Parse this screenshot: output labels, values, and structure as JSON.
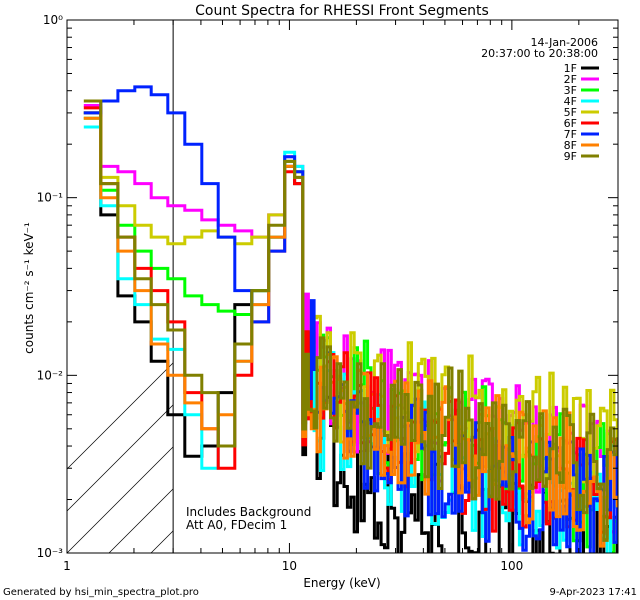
{
  "chart_data": {
    "type": "line",
    "title": "Count Spectra for RHESSI Front Segments",
    "xlabel": "Energy (keV)",
    "ylabel": "counts cm⁻² s⁻¹ keV⁻¹",
    "xscale": "log",
    "yscale": "log",
    "xlim": [
      1,
      300
    ],
    "ylim": [
      0.001,
      1
    ],
    "x_ticks": [
      {
        "value": 1,
        "label": "1"
      },
      {
        "value": 10,
        "label": "10"
      },
      {
        "value": 100,
        "label": "100"
      }
    ],
    "y_ticks": [
      {
        "value": 0.001,
        "label": "10⁻³"
      },
      {
        "value": 0.01,
        "label": "10⁻²"
      },
      {
        "value": 0.1,
        "label": "10⁻¹"
      },
      {
        "value": 1,
        "label": "10⁰"
      }
    ],
    "attenuator_hatch_xmax": 3,
    "date": "14-Jan-2006",
    "time_range": "20:37:00 to 20:38:00",
    "notes": [
      "Includes Background",
      "Att A0, FDecim 1"
    ],
    "footer_left": "Generated by hsi_min_spectra_plot.pro",
    "footer_right": "9-Apr-2023 17:41",
    "x": [
      1.3,
      1.55,
      1.85,
      2.2,
      2.6,
      3.1,
      3.7,
      4.4,
      5.2,
      6.2,
      7.4,
      8.8,
      10.3,
      10.8,
      12.2,
      14.5,
      17.3,
      20.6,
      24.5,
      29.2,
      34.8,
      41.4,
      49.3,
      58.7,
      69.9,
      83.2,
      99.1,
      118,
      140.5,
      167.3,
      199.3,
      237.3,
      282.6
    ],
    "series": [
      {
        "name": "1F",
        "color": "#000000",
        "values": [
          0.3,
          0.08,
          0.028,
          0.02,
          0.012,
          0.006,
          0.0035,
          0.004,
          0.008,
          0.025,
          0.03,
          0.06,
          0.15,
          0.12,
          0.008,
          0.004,
          0.003,
          0.0025,
          0.0022,
          0.002,
          0.0018,
          0.0016,
          0.0015,
          0.0014,
          0.0013,
          0.0013,
          0.0012,
          0.0012,
          0.0012,
          0.0011,
          0.0011,
          0.0011,
          0.001
        ]
      },
      {
        "name": "2F",
        "color": "#ff00ff",
        "values": [
          0.33,
          0.15,
          0.14,
          0.12,
          0.1,
          0.09,
          0.085,
          0.075,
          0.07,
          0.065,
          0.06,
          0.08,
          0.17,
          0.15,
          0.013,
          0.01,
          0.009,
          0.008,
          0.007,
          0.0065,
          0.006,
          0.0058,
          0.0055,
          0.005,
          0.0048,
          0.0045,
          0.0042,
          0.004,
          0.0038,
          0.0035,
          0.0032,
          0.003,
          0.0028
        ]
      },
      {
        "name": "3F",
        "color": "#00ff00",
        "values": [
          0.28,
          0.11,
          0.07,
          0.05,
          0.04,
          0.035,
          0.028,
          0.025,
          0.023,
          0.022,
          0.03,
          0.06,
          0.16,
          0.14,
          0.012,
          0.009,
          0.008,
          0.007,
          0.006,
          0.0055,
          0.005,
          0.0048,
          0.0045,
          0.0042,
          0.004,
          0.0038,
          0.0035,
          0.0033,
          0.003,
          0.0028,
          0.0026,
          0.0024,
          0.0022
        ]
      },
      {
        "name": "4F",
        "color": "#00ffff",
        "values": [
          0.25,
          0.09,
          0.035,
          0.025,
          0.016,
          0.014,
          0.006,
          0.003,
          0.004,
          0.012,
          0.025,
          0.06,
          0.18,
          0.15,
          0.01,
          0.006,
          0.005,
          0.0045,
          0.004,
          0.0038,
          0.0035,
          0.0032,
          0.003,
          0.0028,
          0.0026,
          0.0025,
          0.0024,
          0.0023,
          0.0022,
          0.0021,
          0.002,
          0.0019,
          0.0018
        ]
      },
      {
        "name": "5F",
        "color": "#cccc00",
        "values": [
          0.3,
          0.13,
          0.09,
          0.07,
          0.06,
          0.055,
          0.06,
          0.065,
          0.06,
          0.055,
          0.06,
          0.08,
          0.16,
          0.14,
          0.012,
          0.01,
          0.009,
          0.0085,
          0.008,
          0.0075,
          0.007,
          0.0068,
          0.0065,
          0.006,
          0.0058,
          0.0055,
          0.0052,
          0.005,
          0.0048,
          0.0045,
          0.0042,
          0.004,
          0.0038
        ]
      },
      {
        "name": "6F",
        "color": "#ff0000",
        "values": [
          0.32,
          0.12,
          0.06,
          0.04,
          0.03,
          0.02,
          0.008,
          0.005,
          0.003,
          0.01,
          0.02,
          0.05,
          0.14,
          0.12,
          0.009,
          0.007,
          0.006,
          0.0055,
          0.005,
          0.0045,
          0.004,
          0.0038,
          0.0035,
          0.0033,
          0.003,
          0.0028,
          0.0026,
          0.0025,
          0.0024,
          0.0023,
          0.0022,
          0.0021,
          0.002
        ]
      },
      {
        "name": "7F",
        "color": "#0022ff",
        "values": [
          0.3,
          0.35,
          0.4,
          0.42,
          0.38,
          0.3,
          0.2,
          0.12,
          0.06,
          0.03,
          0.02,
          0.05,
          0.17,
          0.14,
          0.012,
          0.008,
          0.006,
          0.005,
          0.0045,
          0.004,
          0.0035,
          0.0032,
          0.003,
          0.0028,
          0.0026,
          0.0025,
          0.0024,
          0.0023,
          0.0022,
          0.0021,
          0.002,
          0.0019,
          0.0018
        ]
      },
      {
        "name": "8F",
        "color": "#ff8000",
        "values": [
          0.28,
          0.1,
          0.05,
          0.03,
          0.015,
          0.01,
          0.007,
          0.005,
          0.006,
          0.012,
          0.025,
          0.06,
          0.15,
          0.13,
          0.01,
          0.008,
          0.007,
          0.0065,
          0.006,
          0.0055,
          0.005,
          0.0048,
          0.0045,
          0.0042,
          0.004,
          0.0038,
          0.0035,
          0.0033,
          0.003,
          0.0028,
          0.0026,
          0.0024,
          0.0022
        ]
      },
      {
        "name": "9F",
        "color": "#808000",
        "values": [
          0.35,
          0.12,
          0.06,
          0.035,
          0.025,
          0.018,
          0.01,
          0.008,
          0.004,
          0.015,
          0.03,
          0.07,
          0.16,
          0.13,
          0.011,
          0.009,
          0.008,
          0.007,
          0.0065,
          0.006,
          0.0055,
          0.0052,
          0.005,
          0.0048,
          0.0045,
          0.0042,
          0.004,
          0.0038,
          0.0035,
          0.0032,
          0.003,
          0.0028,
          0.0026
        ]
      }
    ]
  }
}
